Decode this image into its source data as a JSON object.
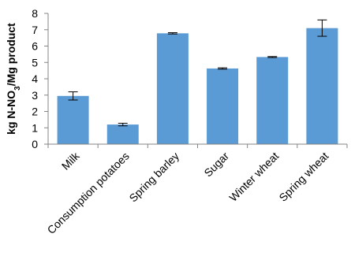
{
  "chart_data": {
    "type": "bar",
    "categories": [
      "Milk",
      "Consumption potatoes",
      "Spring barley",
      "Sugar",
      "Winter wheat",
      "Spring wheat"
    ],
    "values": [
      2.95,
      1.2,
      6.78,
      4.63,
      5.33,
      7.1
    ],
    "error": [
      0.25,
      0.08,
      0.04,
      0.04,
      0.03,
      0.5
    ],
    "xlabel": "",
    "ylabel": "kg N-NO3/Mg product",
    "ylabel_parts": {
      "pre": "kg N-NO",
      "sub": "3",
      "post": "/Mg product"
    },
    "ylim": [
      0,
      8
    ],
    "yticks": [
      0,
      1,
      2,
      3,
      4,
      5,
      6,
      7,
      8
    ],
    "grid": false,
    "legend": "none",
    "bar_color": "#5b9bd5",
    "axis_color": "#868686"
  }
}
